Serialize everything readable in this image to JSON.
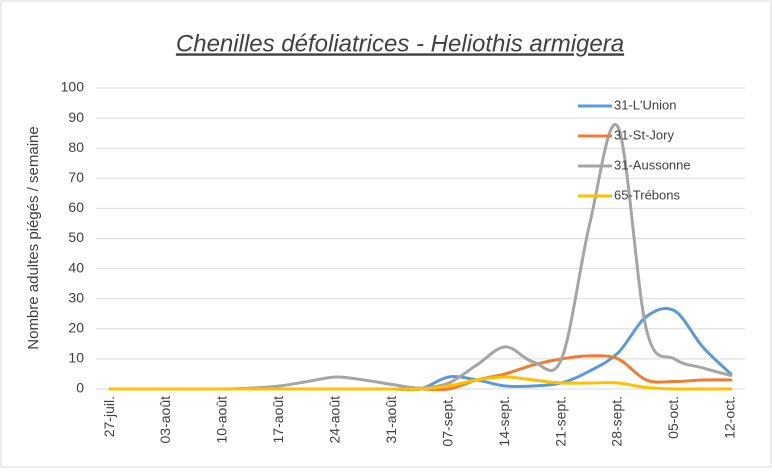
{
  "chart_data": {
    "type": "line",
    "title": "Chenilles défoliatrices - Heliothis armigera",
    "y_label": "Nombre adultes piégés / semaine",
    "categories": [
      "27-juil.",
      null,
      "03-août",
      null,
      "10-août",
      null,
      "17-août",
      null,
      "24-août",
      null,
      "31-août",
      null,
      "07-sept.",
      null,
      "14-sept.",
      null,
      "21-sept.",
      null,
      "28-sept.",
      null,
      "05-oct.",
      null,
      "12-oct."
    ],
    "series": [
      {
        "name": "31-L'Union",
        "color": "#5b9bd5",
        "values": [
          0,
          0,
          0,
          0,
          0,
          0,
          0,
          0,
          0,
          0,
          0,
          0,
          4,
          3,
          1,
          1,
          2,
          6,
          12,
          24,
          26,
          14,
          5
        ]
      },
      {
        "name": "31-St-Jory",
        "color": "#ed7d31",
        "values": [
          0,
          0,
          0,
          0,
          0,
          0,
          0,
          0,
          0,
          0,
          0,
          0,
          0,
          3,
          5,
          8,
          10,
          11,
          10,
          3,
          2.5,
          3,
          3
        ]
      },
      {
        "name": "31-Aussonne",
        "color": "#a5a5a5",
        "values": [
          0,
          0,
          0,
          0,
          0,
          0.3,
          1,
          2.5,
          4,
          3,
          1.5,
          0.3,
          2,
          8,
          14,
          9,
          10,
          55,
          87,
          20,
          10,
          7,
          4.5
        ]
      },
      {
        "name": "65-Trébons",
        "color": "#ffc000",
        "values": [
          0,
          0,
          0,
          0,
          0,
          0,
          0,
          0,
          0,
          0,
          0,
          0,
          1,
          3,
          4,
          3,
          2,
          2,
          2,
          0.5,
          0,
          0,
          0
        ]
      }
    ],
    "ylim": [
      0,
      100
    ],
    "yticks": [
      0,
      10,
      20,
      30,
      40,
      50,
      60,
      70,
      80,
      90,
      100
    ],
    "grid": true,
    "legend": "top-right"
  }
}
